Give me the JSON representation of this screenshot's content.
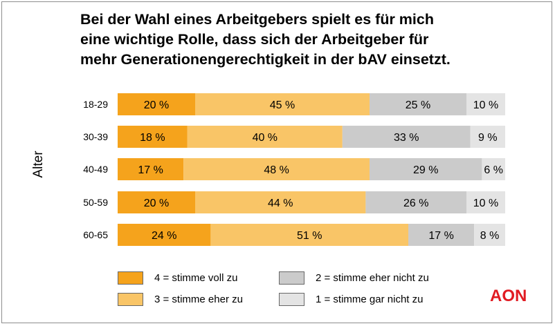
{
  "title_lines": [
    "Bei der Wahl eines Arbeitgebers spielt es für mich",
    "eine wichtige Rolle, dass sich der Arbeitgeber für",
    "mehr Generationengerechtigkeit in der bAV einsetzt."
  ],
  "brand": "AON",
  "colors": {
    "s4": "#f5a31c",
    "s3": "#f9c567",
    "s2": "#cbcbcb",
    "s1": "#e4e4e4",
    "brand": "#e11b22"
  },
  "chart_data": {
    "type": "bar",
    "orientation": "horizontal",
    "stacked": true,
    "ylabel": "Alter",
    "categories": [
      "18-29",
      "30-39",
      "40-49",
      "50-59",
      "60-65"
    ],
    "value_suffix": " %",
    "xlim": [
      0,
      100
    ],
    "grid": false,
    "legend_position": "bottom",
    "series": [
      {
        "name": "4 = stimme voll zu",
        "values": [
          20,
          18,
          17,
          20,
          24
        ]
      },
      {
        "name": "3 = stimme eher zu",
        "values": [
          45,
          40,
          48,
          44,
          51
        ]
      },
      {
        "name": "2 = stimme eher nicht zu",
        "values": [
          25,
          33,
          29,
          26,
          17
        ]
      },
      {
        "name": "1 = stimme gar nicht zu",
        "values": [
          10,
          9,
          6,
          10,
          8
        ]
      }
    ]
  }
}
